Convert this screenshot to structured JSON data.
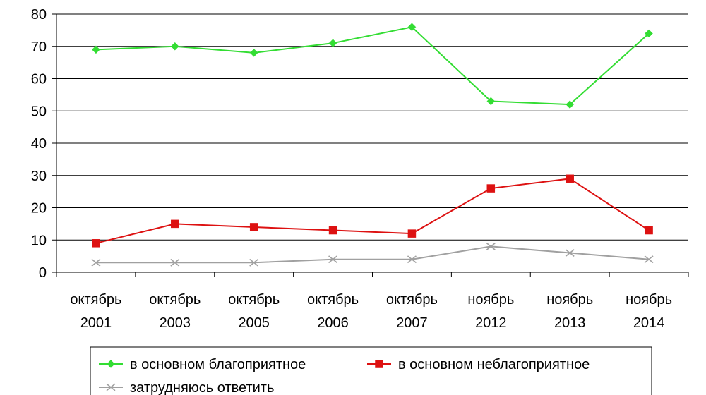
{
  "chart_data": {
    "type": "line",
    "categories": [
      [
        "октябрь",
        "2001"
      ],
      [
        "октябрь",
        "2003"
      ],
      [
        "октябрь",
        "2005"
      ],
      [
        "октябрь",
        "2006"
      ],
      [
        "октябрь",
        "2007"
      ],
      [
        "ноябрь",
        "2012"
      ],
      [
        "ноябрь",
        "2013"
      ],
      [
        "ноябрь",
        "2014"
      ]
    ],
    "ylim": [
      0,
      80
    ],
    "yticks": [
      0,
      10,
      20,
      30,
      40,
      50,
      60,
      70,
      80
    ],
    "grid": true,
    "legend_position": "bottom",
    "series": [
      {
        "name": "в основном благоприятное",
        "color": "#33dd33",
        "marker": "diamond",
        "values": [
          69,
          70,
          68,
          71,
          76,
          53,
          52,
          74
        ]
      },
      {
        "name": "в основном неблагоприятное",
        "color": "#dd1111",
        "marker": "square",
        "values": [
          9,
          15,
          14,
          13,
          12,
          26,
          29,
          13
        ]
      },
      {
        "name": "затрудняюсь ответить",
        "color": "#a0a0a0",
        "marker": "x",
        "values": [
          3,
          3,
          3,
          4,
          4,
          8,
          6,
          4
        ]
      }
    ],
    "title": "",
    "xlabel": "",
    "ylabel": ""
  }
}
